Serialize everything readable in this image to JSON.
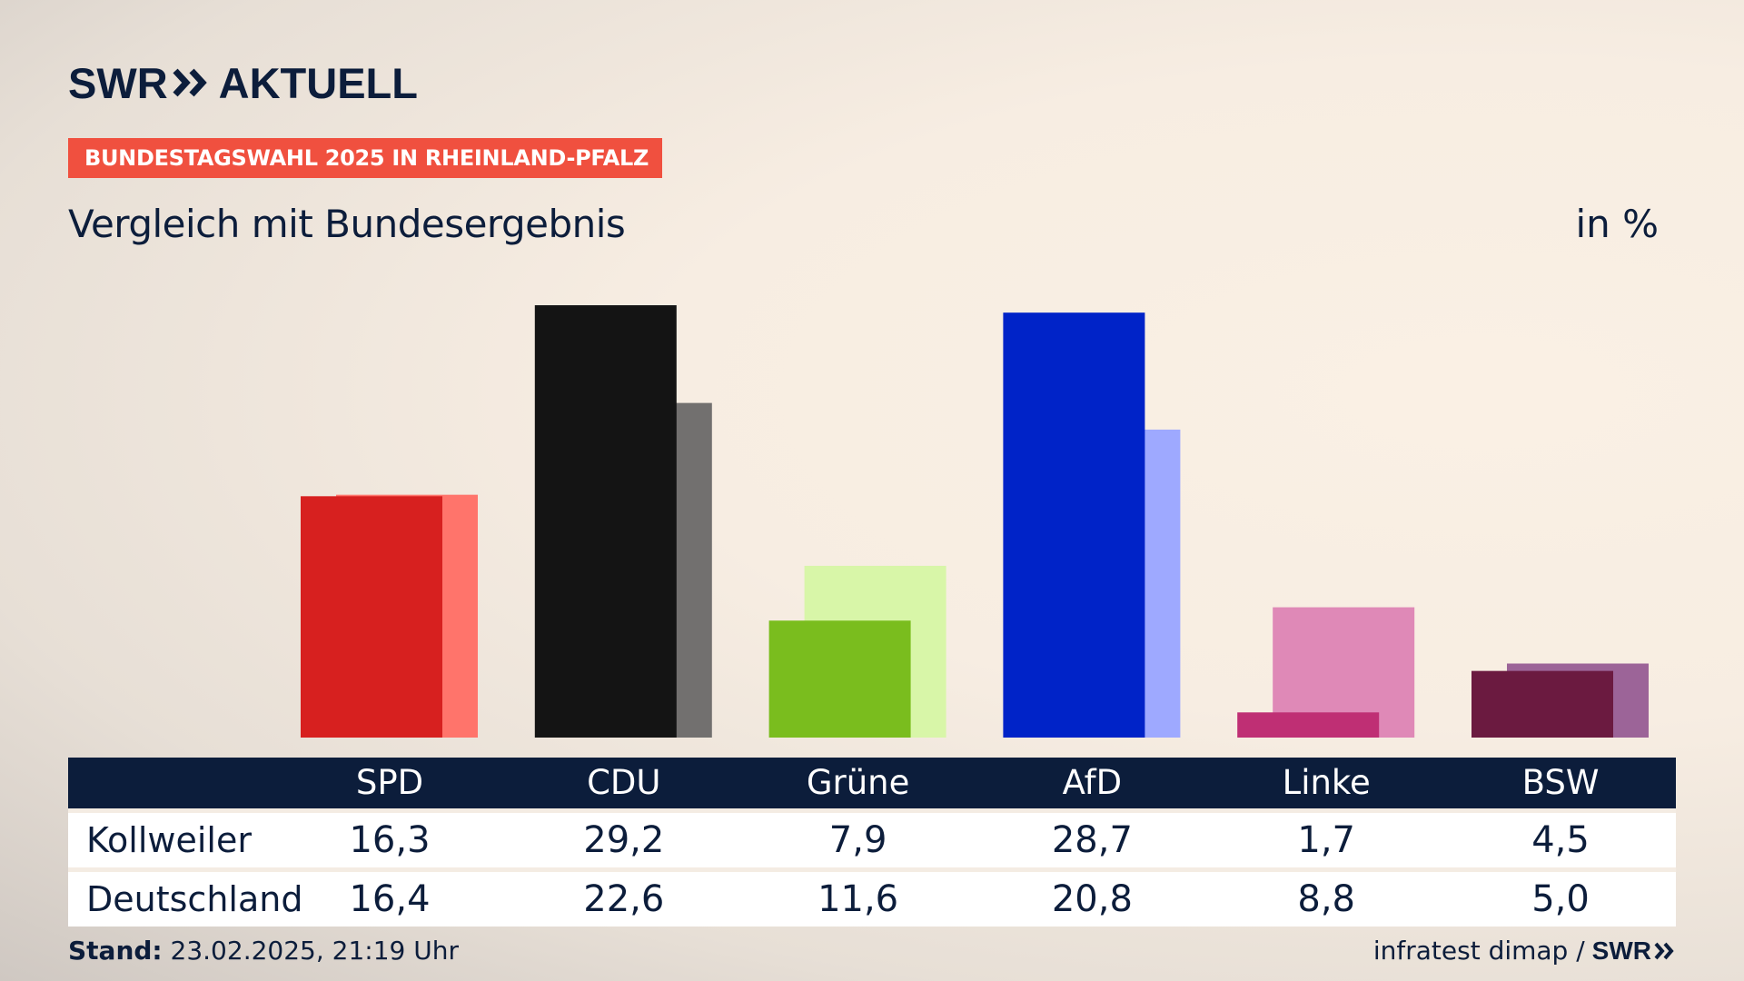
{
  "header": {
    "logo_left": "SWR",
    "logo_right": "AKTUELL",
    "badge": "BUNDESTAGSWAHL 2025 IN RHEINLAND-PFALZ",
    "subtitle": "Vergleich mit Bundesergebnis",
    "unit": "in %"
  },
  "chart_data": {
    "type": "bar",
    "categories": [
      "SPD",
      "CDU",
      "Grüne",
      "AfD",
      "Linke",
      "BSW"
    ],
    "series": [
      {
        "name": "Kollweiler",
        "values": [
          16.3,
          29.2,
          7.9,
          28.7,
          1.7,
          4.5
        ]
      },
      {
        "name": "Deutschland",
        "values": [
          16.4,
          22.6,
          11.6,
          20.8,
          8.8,
          5.0
        ]
      }
    ],
    "colors": {
      "primary": [
        "#d7201f",
        "#141414",
        "#7abd1e",
        "#0023c8",
        "#bf2f74",
        "#6b1a40"
      ],
      "secondary": [
        "#ff746b",
        "#72706f",
        "#d8f6a8",
        "#9ea9ff",
        "#df89b7",
        "#9c6498"
      ]
    },
    "ylim": [
      0,
      30
    ],
    "grid": false
  },
  "table": {
    "rows": [
      {
        "label": "Kollweiler",
        "values": [
          "16,3",
          "29,2",
          "7,9",
          "28,7",
          "1,7",
          "4,5"
        ]
      },
      {
        "label": "Deutschland",
        "values": [
          "16,4",
          "22,6",
          "11,6",
          "20,8",
          "8,8",
          "5,0"
        ]
      }
    ]
  },
  "footer": {
    "stand_label": "Stand:",
    "stand_value": "23.02.2025, 21:19 Uhr",
    "source": "infratest dimap /",
    "brand": "SWR"
  },
  "icons": {
    "logo_chevrons": "double-chevron-icon"
  }
}
